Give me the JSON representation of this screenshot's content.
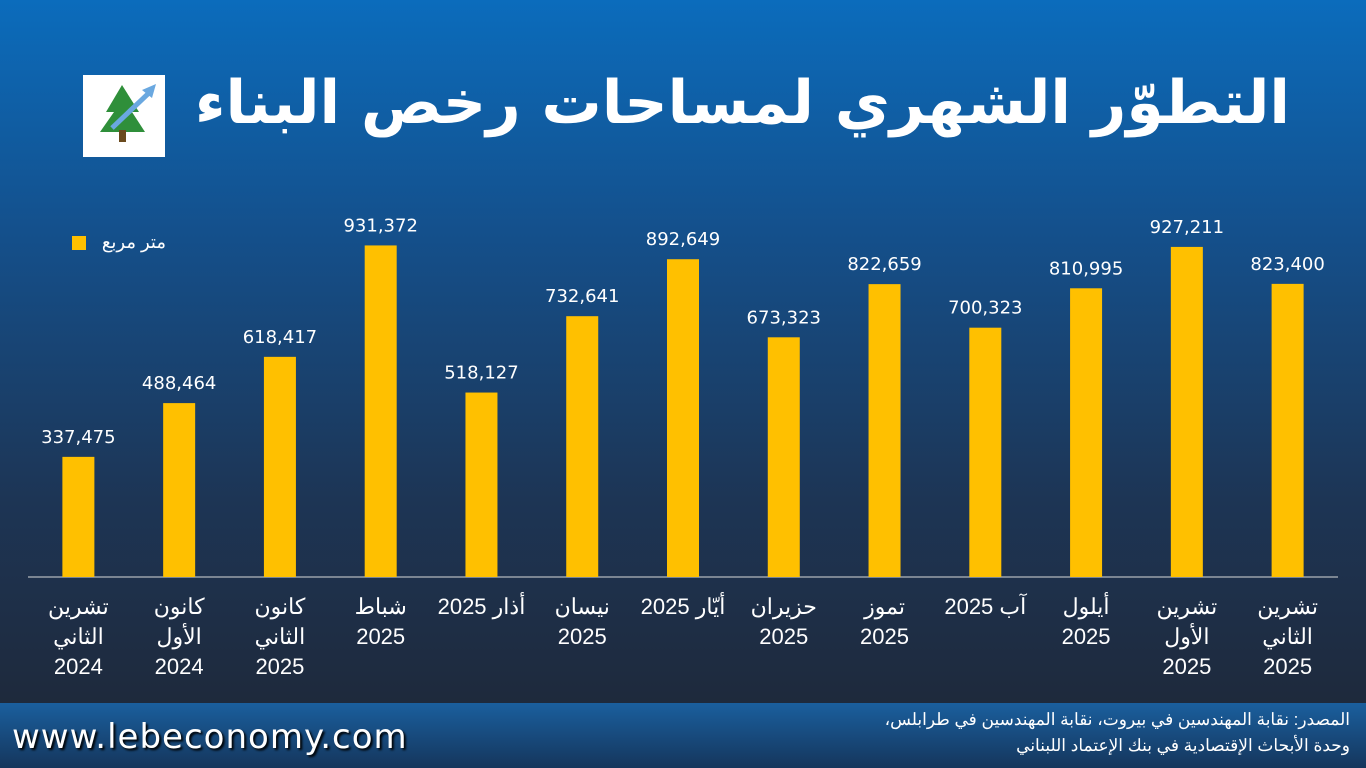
{
  "chart_data": {
    "type": "bar",
    "title": "التطوّر الشهري لمساحات رخص البناء",
    "categories": [
      "تشرين الثاني 2024",
      "كانون الأول 2024",
      "كانون الثاني 2025",
      "شباط 2025",
      "أذار 2025",
      "نيسان 2025",
      "أيّار 2025",
      "حزيران 2025",
      "تموز 2025",
      "آب 2025",
      "أيلول 2025",
      "تشرين الأول 2025",
      "تشرين الثاني 2025"
    ],
    "series": [
      {
        "name": "متر مربع",
        "color": "#FFC000",
        "values": [
          337475,
          488464,
          618417,
          931372,
          518127,
          732641,
          892649,
          673323,
          822659,
          700323,
          810995,
          927211,
          823400
        ],
        "value_labels": [
          "337,475",
          "488,464",
          "618,417",
          "931,372",
          "518,127",
          "732,641",
          "892,649",
          "673,323",
          "822,659",
          "700,323",
          "810,995",
          "927,211",
          "823,400"
        ]
      }
    ],
    "ylim": [
      0,
      1000000
    ],
    "legend": "top-left"
  },
  "footer": {
    "website": "www.lebeconomy.com",
    "source": [
      "المصدر: نقابة المهندسين في بيروت، نقابة المهندسين في طرابلس،",
      "وحدة الأبحاث الإقتصادية في بنك الإعتماد اللبناني"
    ]
  }
}
